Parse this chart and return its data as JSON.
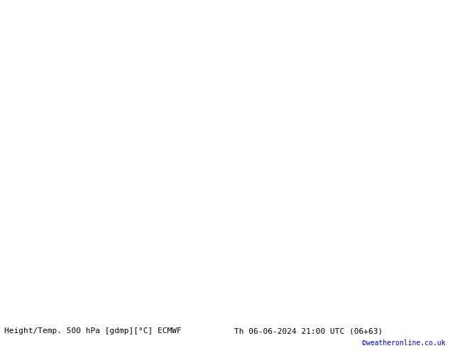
{
  "title_left": "Height/Temp. 500 hPa [gdmp][°C] ECMWF",
  "title_right": "Th 06-06-2024 21:00 UTC (06+63)",
  "credit": "©weatheronline.co.uk",
  "bg_ocean": "#e8e8e8",
  "bg_land_gray": "#d0d0d0",
  "bg_land_green": "#c8f0a0",
  "coastline_color": "#a0a0a0",
  "height_color": "#000000",
  "cyan_color": "#00c8c8",
  "yellow_color": "#b8d800",
  "orange_color": "#e09000",
  "lon_min": -15.0,
  "lon_max": 25.0,
  "lat_min": 42.0,
  "lat_max": 72.0,
  "font_size_label": 8,
  "font_size_bottom": 8,
  "font_size_credit": 7,
  "bold_contour": 544
}
